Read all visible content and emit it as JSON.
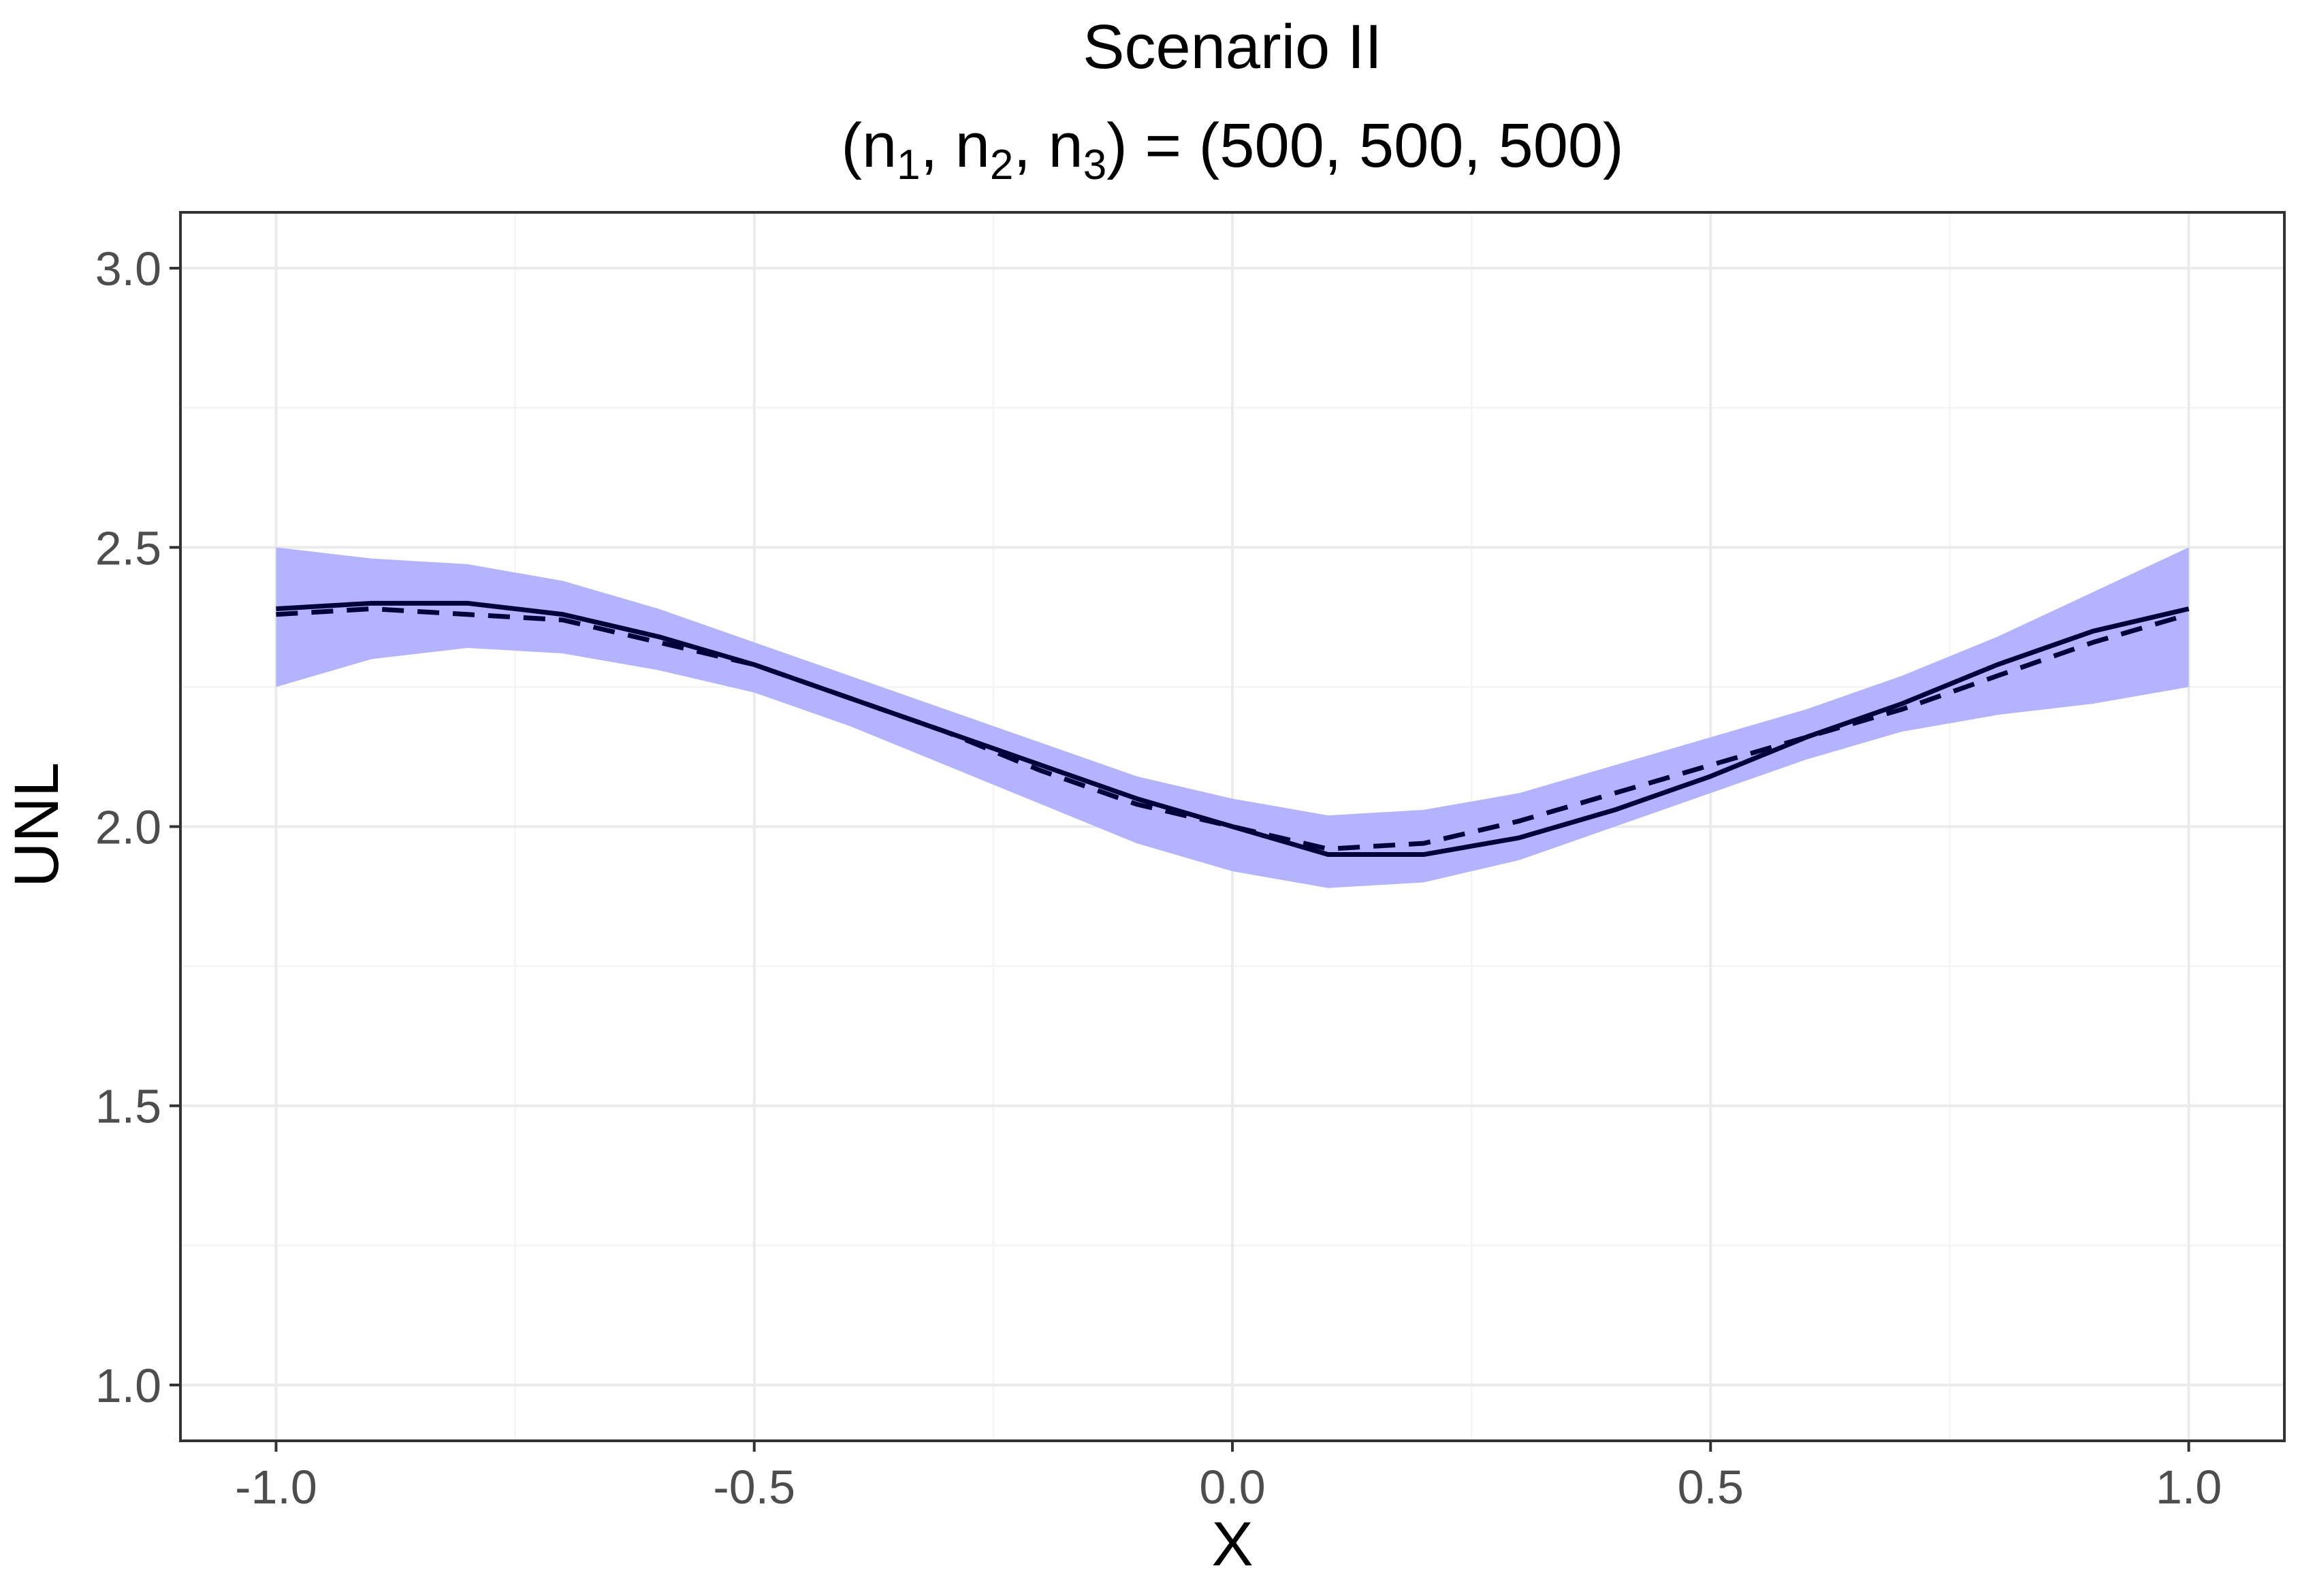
{
  "chart_data": {
    "type": "line",
    "title": "Scenario II",
    "subtitle_parts": [
      "(n",
      "1",
      ", n",
      "2",
      ", n",
      "3",
      ") = (500, 500, 500)"
    ],
    "xlabel": "X",
    "ylabel": "UNL",
    "xlim": [
      -1.1,
      1.1
    ],
    "ylim": [
      0.9,
      3.1
    ],
    "x_ticks": [
      -1.0,
      -0.5,
      0.0,
      0.5,
      1.0
    ],
    "x_tick_labels": [
      "-1.0",
      "-0.5",
      "0.0",
      "0.5",
      "1.0"
    ],
    "y_ticks": [
      1.0,
      1.5,
      2.0,
      2.5,
      3.0
    ],
    "y_tick_labels": [
      "1.0",
      "1.5",
      "2.0",
      "2.5",
      "3.0"
    ],
    "grid": true,
    "legend": "none",
    "band_color": "#b3b3ff",
    "line_color": "#00003a",
    "x": [
      -1.0,
      -0.9,
      -0.8,
      -0.7,
      -0.6,
      -0.5,
      -0.4,
      -0.3,
      -0.2,
      -0.1,
      0.0,
      0.1,
      0.2,
      0.3,
      0.4,
      0.5,
      0.6,
      0.7,
      0.8,
      0.9,
      1.0
    ],
    "series": [
      {
        "style": "solid",
        "values": [
          2.39,
          2.4,
          2.4,
          2.38,
          2.34,
          2.29,
          2.23,
          2.17,
          2.11,
          2.05,
          2.0,
          1.95,
          1.95,
          1.98,
          2.03,
          2.09,
          2.16,
          2.22,
          2.29,
          2.35,
          2.39
        ]
      },
      {
        "style": "dashed",
        "values": [
          2.38,
          2.39,
          2.38,
          2.37,
          2.33,
          2.29,
          2.23,
          2.17,
          2.1,
          2.04,
          2.0,
          1.96,
          1.97,
          2.01,
          2.06,
          2.11,
          2.16,
          2.21,
          2.27,
          2.33,
          2.38
        ]
      }
    ],
    "band": {
      "lower": [
        2.25,
        2.3,
        2.32,
        2.31,
        2.28,
        2.24,
        2.18,
        2.11,
        2.04,
        1.97,
        1.92,
        1.89,
        1.9,
        1.94,
        2.0,
        2.06,
        2.12,
        2.17,
        2.2,
        2.22,
        2.25
      ],
      "upper": [
        2.5,
        2.48,
        2.47,
        2.44,
        2.39,
        2.33,
        2.27,
        2.21,
        2.15,
        2.09,
        2.05,
        2.02,
        2.03,
        2.06,
        2.11,
        2.16,
        2.21,
        2.27,
        2.34,
        2.42,
        2.5
      ]
    }
  }
}
